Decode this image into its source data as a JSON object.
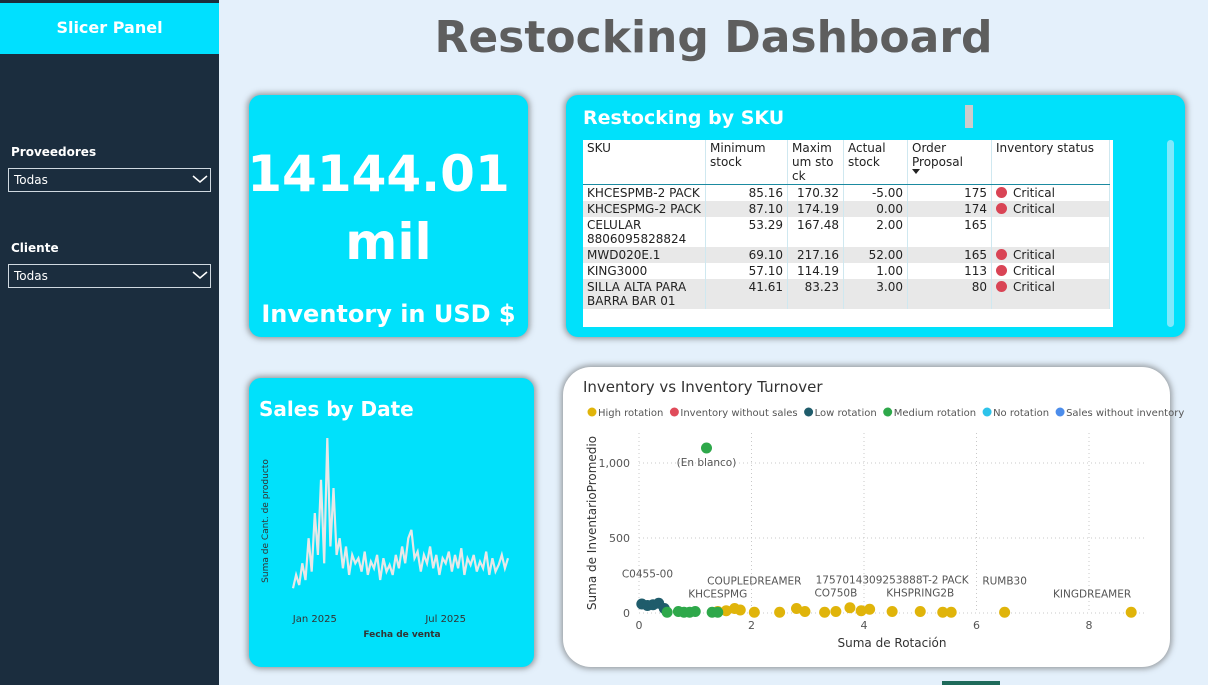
{
  "sidebar": {
    "title": "Slicer Panel",
    "slicers": [
      {
        "label": "Proveedores",
        "value": "Todas"
      },
      {
        "label": "Cliente",
        "value": "Todas"
      }
    ]
  },
  "header": {
    "title": "Restocking Dashboard"
  },
  "kpi": {
    "value": "14144.01",
    "unit": "mil",
    "label": "Inventory in USD $"
  },
  "table": {
    "title": "Restocking by SKU",
    "columns": [
      "SKU",
      "Minimum stock",
      "Maximum stock",
      "Actual stock",
      "Order Proposal",
      "Inventory status"
    ],
    "rows": [
      [
        "KHCESPMB-2 PACK",
        "85.16",
        "170.32",
        "-5.00",
        "175",
        "Critical"
      ],
      [
        "KHCESPMG-2 PACK",
        "87.10",
        "174.19",
        "0.00",
        "174",
        "Critical"
      ],
      [
        "CELULAR 8806095828824",
        "53.29",
        "167.48",
        "2.00",
        "165",
        null
      ],
      [
        "MWD020E.1",
        "69.10",
        "217.16",
        "52.00",
        "165",
        "Critical"
      ],
      [
        "KING3000",
        "57.10",
        "114.19",
        "1.00",
        "113",
        "Critical"
      ],
      [
        "SILLA ALTA PARA BARRA BAR 01",
        "41.61",
        "83.23",
        "3.00",
        "80",
        "Critical"
      ]
    ]
  },
  "chart_data": [
    {
      "type": "line",
      "title": "Sales by Date",
      "x_label": "Fecha de venta",
      "y_label": "Suma de Cant. de producto",
      "color": "#e8e8e8",
      "ylim": [
        0,
        100
      ],
      "categories": [
        null,
        null,
        null,
        null,
        null,
        null,
        null,
        "Jan 2025",
        null,
        null,
        null,
        null,
        null,
        null,
        null,
        null,
        null,
        null,
        null,
        null,
        null,
        null,
        null,
        null,
        null,
        null,
        null,
        null,
        null,
        null,
        null,
        null,
        null,
        null,
        null,
        null,
        null,
        null,
        null,
        null,
        null,
        null,
        null,
        null,
        null,
        null,
        null,
        null,
        null,
        "Jul 2025",
        null,
        null,
        null,
        null,
        null,
        null,
        null,
        null,
        null,
        null,
        null,
        null,
        null,
        null,
        null,
        null,
        null,
        null,
        null,
        null
      ],
      "values": [
        10,
        18,
        12,
        25,
        15,
        40,
        20,
        55,
        30,
        75,
        25,
        100,
        35,
        70,
        30,
        40,
        22,
        35,
        18,
        30,
        25,
        28,
        20,
        32,
        18,
        26,
        22,
        30,
        15,
        28,
        20,
        24,
        18,
        30,
        22,
        35,
        25,
        40,
        45,
        28,
        32,
        20,
        30,
        25,
        35,
        22,
        30,
        18,
        28,
        25,
        32,
        20,
        30,
        22,
        34,
        18,
        28,
        24,
        30,
        20,
        26,
        22,
        32,
        18,
        28,
        20,
        24,
        30,
        22,
        28
      ]
    },
    {
      "type": "scatter",
      "title": "Inventory vs Inventory Turnover",
      "x_label": "Suma de Rotación",
      "y_label": "Suma de InventarioPromedio",
      "xlim": [
        0,
        9
      ],
      "ylim": [
        0,
        1200
      ],
      "xticks": [
        0,
        2,
        4,
        6,
        8
      ],
      "yticks": [
        0,
        500,
        {
          "value": 1000,
          "label": "1,000"
        }
      ],
      "grid": true,
      "series": [
        {
          "name": "High rotation",
          "color": "#E0B40A",
          "x": [
            1.4,
            1.55,
            1.7,
            1.8,
            2.05,
            2.5,
            2.8,
            2.95,
            3.3,
            3.5,
            3.75,
            3.95,
            4.1,
            4.5,
            5.0,
            5.4,
            5.55,
            6.5,
            8.75
          ],
          "y": [
            10,
            15,
            30,
            20,
            5,
            5,
            30,
            10,
            5,
            10,
            35,
            15,
            25,
            10,
            10,
            5,
            5,
            5,
            5
          ],
          "labels": [
            null,
            null,
            null,
            null,
            "COUPLEDREAMER",
            null,
            null,
            null,
            null,
            "CO750B",
            null,
            null,
            null,
            "1757014309253888T-2 PACK",
            "KHSPRING2B",
            null,
            null,
            "RUMB30",
            "KINGDREAMER"
          ]
        },
        {
          "name": "Inventory without sales",
          "color": "#E04B5A",
          "x": [],
          "y": [],
          "labels": []
        },
        {
          "name": "Low rotation",
          "color": "#1F5C6B",
          "x": [
            0.05,
            0.15,
            0.25,
            0.35,
            0.45
          ],
          "y": [
            60,
            50,
            55,
            65,
            30
          ],
          "labels": [
            null,
            "C0455-00",
            null,
            null,
            null
          ]
        },
        {
          "name": "Medium rotation",
          "color": "#2EA84A",
          "x": [
            0.5,
            0.7,
            0.8,
            0.9,
            1.0,
            1.3,
            1.4,
            1.2
          ],
          "y": [
            5,
            10,
            5,
            5,
            10,
            5,
            5,
            1100
          ],
          "labels": [
            null,
            null,
            null,
            null,
            null,
            null,
            "KHCESPMG",
            "(En blanco)"
          ]
        },
        {
          "name": "No rotation",
          "color": "#2DC3EA",
          "x": [],
          "y": [],
          "labels": []
        },
        {
          "name": "Sales without inventory",
          "color": "#4C8DEB",
          "x": [],
          "y": [],
          "labels": []
        }
      ]
    }
  ]
}
